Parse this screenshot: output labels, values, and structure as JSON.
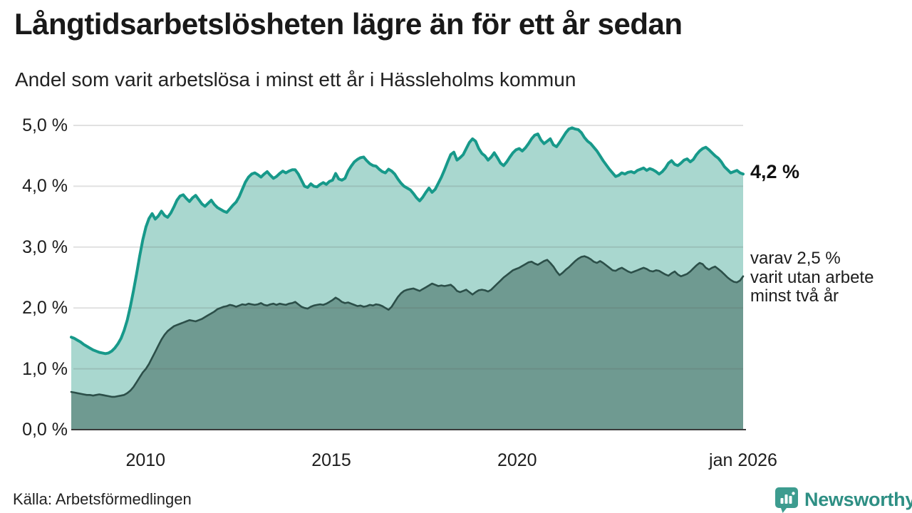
{
  "header": {
    "title": "Långtidsarbetslösheten lägre än för ett år sedan",
    "subtitle": "Andel som varit arbetslösa i minst ett år i Hässleholms kommun"
  },
  "chart_data": {
    "type": "area",
    "title": "Långtidsarbetslösheten lägre än för ett år sedan",
    "subtitle": "Andel som varit arbetslösa i minst ett år i Hässleholms kommun",
    "unit": "%",
    "grid": true,
    "x_start_year": 2008,
    "x_step_months": 1,
    "ylim": [
      0,
      5.0
    ],
    "y_ticks": [
      {
        "label": "0,0 %",
        "value": 0.0
      },
      {
        "label": "1,0 %",
        "value": 1.0
      },
      {
        "label": "2,0 %",
        "value": 2.0
      },
      {
        "label": "3,0 %",
        "value": 3.0
      },
      {
        "label": "4,0 %",
        "value": 4.0
      },
      {
        "label": "5,0 %",
        "value": 5.0
      }
    ],
    "x_ticks": [
      {
        "label": "2010",
        "t": 2010.0
      },
      {
        "label": "2015",
        "t": 2015.0
      },
      {
        "label": "2020",
        "t": 2020.0
      },
      {
        "label": "jan 2026",
        "t": 2026.083
      }
    ],
    "annotations": {
      "end_label": "4,2 %",
      "side_note": [
        "varav 2,5 %",
        "varit utan arbete",
        "minst två år"
      ]
    },
    "colors": {
      "line_total": "#17998a",
      "fill_total": "#a9d7cf",
      "line_two_years": "#2c4f49",
      "fill_two_years": "#6f9a91",
      "gridline": "rgba(90,90,90,0.18)",
      "baseline": "#3a3a3a"
    },
    "series": [
      {
        "name": "Andel arbetslösa minst ett år",
        "last_value": 4.2,
        "values": [
          1.52,
          1.5,
          1.47,
          1.44,
          1.4,
          1.37,
          1.34,
          1.31,
          1.29,
          1.27,
          1.26,
          1.25,
          1.26,
          1.29,
          1.34,
          1.41,
          1.5,
          1.63,
          1.8,
          2.02,
          2.28,
          2.56,
          2.85,
          3.12,
          3.33,
          3.47,
          3.55,
          3.46,
          3.51,
          3.59,
          3.52,
          3.49,
          3.56,
          3.66,
          3.77,
          3.84,
          3.86,
          3.8,
          3.75,
          3.81,
          3.85,
          3.78,
          3.71,
          3.67,
          3.72,
          3.77,
          3.7,
          3.65,
          3.62,
          3.59,
          3.57,
          3.63,
          3.69,
          3.74,
          3.83,
          3.95,
          4.07,
          4.15,
          4.2,
          4.22,
          4.19,
          4.15,
          4.2,
          4.24,
          4.18,
          4.13,
          4.16,
          4.21,
          4.25,
          4.22,
          4.25,
          4.27,
          4.27,
          4.2,
          4.1,
          4.0,
          3.98,
          4.04,
          4.0,
          3.99,
          4.03,
          4.06,
          4.03,
          4.08,
          4.1,
          4.21,
          4.12,
          4.1,
          4.13,
          4.25,
          4.33,
          4.4,
          4.44,
          4.47,
          4.48,
          4.42,
          4.37,
          4.34,
          4.33,
          4.28,
          4.24,
          4.22,
          4.28,
          4.25,
          4.2,
          4.12,
          4.05,
          4.0,
          3.97,
          3.94,
          3.88,
          3.81,
          3.76,
          3.82,
          3.9,
          3.97,
          3.9,
          3.95,
          4.05,
          4.15,
          4.27,
          4.4,
          4.52,
          4.56,
          4.43,
          4.47,
          4.52,
          4.62,
          4.72,
          4.78,
          4.74,
          4.62,
          4.54,
          4.5,
          4.43,
          4.48,
          4.55,
          4.47,
          4.38,
          4.34,
          4.4,
          4.48,
          4.55,
          4.6,
          4.62,
          4.58,
          4.63,
          4.7,
          4.78,
          4.84,
          4.86,
          4.76,
          4.7,
          4.74,
          4.78,
          4.68,
          4.65,
          4.72,
          4.8,
          4.88,
          4.94,
          4.96,
          4.94,
          4.93,
          4.88,
          4.8,
          4.74,
          4.7,
          4.64,
          4.58,
          4.5,
          4.42,
          4.35,
          4.28,
          4.22,
          4.16,
          4.18,
          4.22,
          4.2,
          4.23,
          4.24,
          4.22,
          4.26,
          4.28,
          4.3,
          4.26,
          4.29,
          4.27,
          4.24,
          4.2,
          4.24,
          4.3,
          4.38,
          4.42,
          4.36,
          4.34,
          4.38,
          4.43,
          4.45,
          4.4,
          4.44,
          4.52,
          4.58,
          4.62,
          4.64,
          4.6,
          4.55,
          4.5,
          4.46,
          4.4,
          4.32,
          4.27,
          4.22,
          4.24,
          4.26,
          4.22,
          4.2
        ]
      },
      {
        "name": "varav utan arbete minst två år",
        "last_value": 2.5,
        "values": [
          0.62,
          0.61,
          0.6,
          0.59,
          0.58,
          0.57,
          0.57,
          0.56,
          0.57,
          0.58,
          0.57,
          0.56,
          0.55,
          0.54,
          0.54,
          0.55,
          0.56,
          0.57,
          0.6,
          0.64,
          0.7,
          0.78,
          0.86,
          0.94,
          1.0,
          1.08,
          1.18,
          1.28,
          1.38,
          1.48,
          1.56,
          1.62,
          1.66,
          1.7,
          1.72,
          1.74,
          1.76,
          1.78,
          1.8,
          1.79,
          1.78,
          1.8,
          1.82,
          1.85,
          1.88,
          1.91,
          1.94,
          1.98,
          2.0,
          2.02,
          2.03,
          2.05,
          2.04,
          2.02,
          2.04,
          2.06,
          2.05,
          2.07,
          2.06,
          2.05,
          2.06,
          2.08,
          2.05,
          2.04,
          2.06,
          2.07,
          2.05,
          2.07,
          2.06,
          2.05,
          2.07,
          2.08,
          2.1,
          2.06,
          2.02,
          2.0,
          1.99,
          2.02,
          2.04,
          2.05,
          2.06,
          2.05,
          2.07,
          2.1,
          2.13,
          2.17,
          2.14,
          2.1,
          2.08,
          2.09,
          2.07,
          2.05,
          2.03,
          2.04,
          2.02,
          2.03,
          2.05,
          2.04,
          2.06,
          2.05,
          2.03,
          2.0,
          1.97,
          2.02,
          2.1,
          2.18,
          2.24,
          2.28,
          2.3,
          2.31,
          2.32,
          2.3,
          2.28,
          2.31,
          2.34,
          2.37,
          2.4,
          2.38,
          2.36,
          2.37,
          2.36,
          2.37,
          2.38,
          2.34,
          2.28,
          2.26,
          2.28,
          2.3,
          2.26,
          2.22,
          2.26,
          2.29,
          2.3,
          2.29,
          2.27,
          2.3,
          2.35,
          2.4,
          2.45,
          2.5,
          2.54,
          2.58,
          2.62,
          2.64,
          2.66,
          2.69,
          2.72,
          2.75,
          2.76,
          2.73,
          2.71,
          2.74,
          2.77,
          2.79,
          2.74,
          2.68,
          2.6,
          2.54,
          2.58,
          2.63,
          2.67,
          2.72,
          2.77,
          2.81,
          2.84,
          2.85,
          2.83,
          2.8,
          2.76,
          2.74,
          2.77,
          2.74,
          2.7,
          2.66,
          2.62,
          2.61,
          2.64,
          2.66,
          2.63,
          2.6,
          2.58,
          2.6,
          2.62,
          2.64,
          2.66,
          2.64,
          2.61,
          2.6,
          2.62,
          2.61,
          2.58,
          2.55,
          2.53,
          2.57,
          2.6,
          2.55,
          2.52,
          2.54,
          2.56,
          2.6,
          2.65,
          2.7,
          2.74,
          2.72,
          2.66,
          2.63,
          2.66,
          2.68,
          2.64,
          2.6,
          2.55,
          2.5,
          2.46,
          2.43,
          2.42,
          2.45,
          2.52
        ]
      }
    ]
  },
  "footer": {
    "source": "Källa: Arbetsförmedlingen",
    "brand": "Newsworthy",
    "brand_icon": "bar-chart-speech-bubble-icon",
    "brand_color": "#2e8f84"
  }
}
